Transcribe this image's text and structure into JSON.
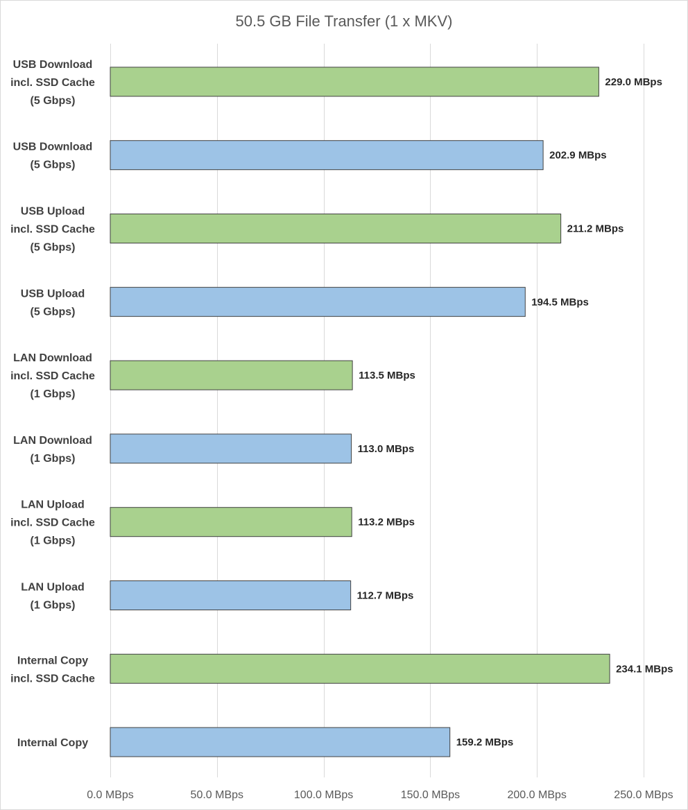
{
  "chart_data": {
    "type": "bar",
    "orientation": "horizontal",
    "title": "50.5 GB File Transfer (1 x MKV)",
    "xlabel": "",
    "ylabel": "",
    "xlim": [
      0,
      250
    ],
    "x_ticks": [
      0,
      50,
      100,
      150,
      200,
      250
    ],
    "x_tick_labels": [
      "0.0 MBps",
      "50.0 MBps",
      "100.0 MBps",
      "150.0 MBps",
      "200.0 MBps",
      "250.0 MBps"
    ],
    "grid": "vertical",
    "legend": "none",
    "colors": {
      "ssd_cache": "#a9d18e",
      "standard": "#9dc3e6"
    },
    "categories": [
      {
        "lines": [
          "USB Download",
          "incl. SSD Cache",
          "(5 Gbps)"
        ],
        "value": 229.0,
        "value_label": "229.0 MBps",
        "color_key": "ssd_cache"
      },
      {
        "lines": [
          "USB Download",
          "(5 Gbps)"
        ],
        "value": 202.9,
        "value_label": "202.9 MBps",
        "color_key": "standard"
      },
      {
        "lines": [
          "USB Upload",
          "incl. SSD Cache",
          "(5 Gbps)"
        ],
        "value": 211.2,
        "value_label": "211.2 MBps",
        "color_key": "ssd_cache"
      },
      {
        "lines": [
          "USB Upload",
          "(5 Gbps)"
        ],
        "value": 194.5,
        "value_label": "194.5 MBps",
        "color_key": "standard"
      },
      {
        "lines": [
          "LAN Download",
          "incl. SSD Cache",
          "(1 Gbps)"
        ],
        "value": 113.5,
        "value_label": "113.5 MBps",
        "color_key": "ssd_cache"
      },
      {
        "lines": [
          "LAN Download",
          "(1 Gbps)"
        ],
        "value": 113.0,
        "value_label": "113.0 MBps",
        "color_key": "standard"
      },
      {
        "lines": [
          "LAN Upload",
          "incl. SSD Cache",
          "(1 Gbps)"
        ],
        "value": 113.2,
        "value_label": "113.2 MBps",
        "color_key": "ssd_cache"
      },
      {
        "lines": [
          "LAN Upload",
          "(1 Gbps)"
        ],
        "value": 112.7,
        "value_label": "112.7 MBps",
        "color_key": "standard"
      },
      {
        "lines": [
          "Internal Copy",
          "incl. SSD Cache"
        ],
        "value": 234.1,
        "value_label": "234.1 MBps",
        "color_key": "ssd_cache"
      },
      {
        "lines": [
          "Internal Copy"
        ],
        "value": 159.2,
        "value_label": "159.2 MBps",
        "color_key": "standard"
      }
    ]
  }
}
